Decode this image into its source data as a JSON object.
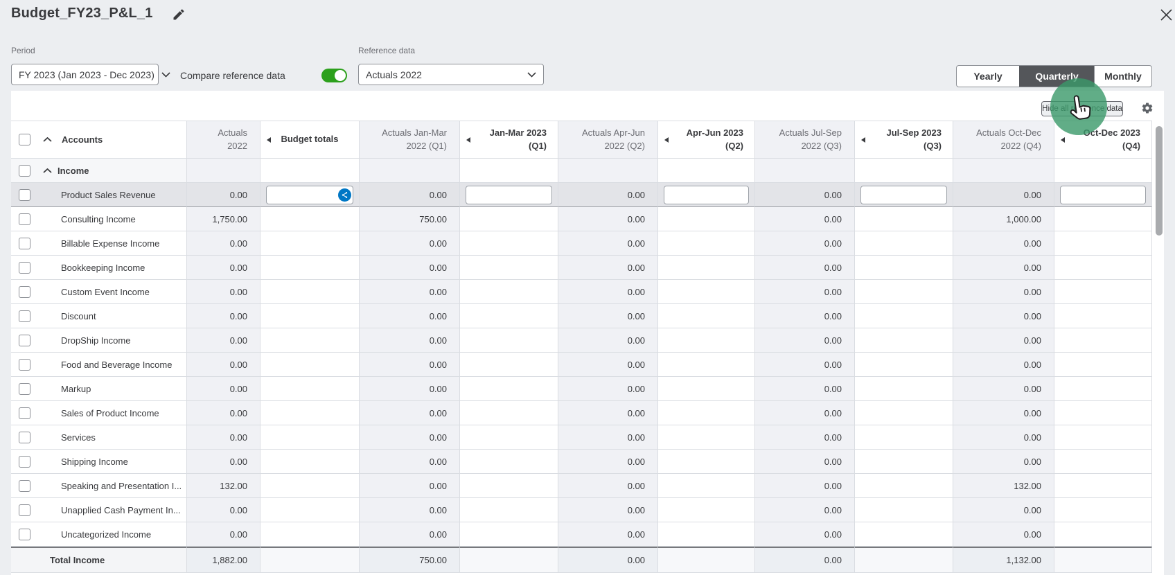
{
  "header": {
    "title": "Budget_FY23_P&L_1",
    "edit_icon": "pencil-edit",
    "close_icon": "close-x"
  },
  "controls": {
    "period": {
      "label": "Period",
      "value": "FY 2023 (Jan 2023 - Dec 2023)"
    },
    "compare_label": "Compare reference data",
    "compare_toggle_state": "on",
    "reference": {
      "label": "Reference data",
      "value": "Actuals 2022"
    },
    "view_tabs": [
      {
        "label": "Yearly",
        "selected": false
      },
      {
        "label": "Quarterly",
        "selected": true
      },
      {
        "label": "Monthly",
        "selected": false
      }
    ]
  },
  "toolbar": {
    "hide_reference_label": "Hide all reference data",
    "gear_icon": "settings-gear"
  },
  "table": {
    "columns": [
      {
        "id": "accounts",
        "kind": "accounts",
        "label": "Accounts"
      },
      {
        "id": "actuals_2022",
        "kind": "reference",
        "line1": "Actuals",
        "line2": "2022"
      },
      {
        "id": "budget_totals",
        "kind": "editable",
        "line1": "Budget totals",
        "line2": "",
        "center": true,
        "arrow": true
      },
      {
        "id": "actuals_q1",
        "kind": "reference",
        "line1": "Actuals Jan-Mar",
        "line2": "2022 (Q1)"
      },
      {
        "id": "q1",
        "kind": "editable",
        "line1": "Jan-Mar 2023",
        "line2": "(Q1)",
        "arrow": true
      },
      {
        "id": "actuals_q2",
        "kind": "reference",
        "line1": "Actuals Apr-Jun",
        "line2": "2022 (Q2)"
      },
      {
        "id": "q2",
        "kind": "editable",
        "line1": "Apr-Jun 2023",
        "line2": "(Q2)",
        "arrow": true
      },
      {
        "id": "actuals_q3",
        "kind": "reference",
        "line1": "Actuals Jul-Sep",
        "line2": "2022 (Q3)"
      },
      {
        "id": "q3",
        "kind": "editable",
        "line1": "Jul-Sep 2023",
        "line2": "(Q3)",
        "arrow": true
      },
      {
        "id": "actuals_q4",
        "kind": "reference",
        "line1": "Actuals Oct-Dec",
        "line2": "2022 (Q4)"
      },
      {
        "id": "q4",
        "kind": "editable",
        "line1": "Oct-Dec 2023",
        "line2": "(Q4)",
        "arrow": true
      }
    ],
    "rows": [
      {
        "type": "group",
        "name": "Income"
      },
      {
        "type": "account",
        "name": "Product Sales Revenue",
        "selected": true,
        "values": {
          "actuals_2022": "0.00",
          "actuals_q1": "0.00",
          "actuals_q2": "0.00",
          "actuals_q3": "0.00",
          "actuals_q4": "0.00"
        }
      },
      {
        "type": "account",
        "name": "Consulting Income",
        "values": {
          "actuals_2022": "1,750.00",
          "actuals_q1": "750.00",
          "actuals_q2": "0.00",
          "actuals_q3": "0.00",
          "actuals_q4": "1,000.00"
        }
      },
      {
        "type": "account",
        "name": "Billable Expense Income",
        "values": {
          "actuals_2022": "0.00",
          "actuals_q1": "0.00",
          "actuals_q2": "0.00",
          "actuals_q3": "0.00",
          "actuals_q4": "0.00"
        }
      },
      {
        "type": "account",
        "name": "Bookkeeping Income",
        "values": {
          "actuals_2022": "0.00",
          "actuals_q1": "0.00",
          "actuals_q2": "0.00",
          "actuals_q3": "0.00",
          "actuals_q4": "0.00"
        }
      },
      {
        "type": "account",
        "name": "Custom Event Income",
        "values": {
          "actuals_2022": "0.00",
          "actuals_q1": "0.00",
          "actuals_q2": "0.00",
          "actuals_q3": "0.00",
          "actuals_q4": "0.00"
        }
      },
      {
        "type": "account",
        "name": "Discount",
        "values": {
          "actuals_2022": "0.00",
          "actuals_q1": "0.00",
          "actuals_q2": "0.00",
          "actuals_q3": "0.00",
          "actuals_q4": "0.00"
        }
      },
      {
        "type": "account",
        "name": "DropShip Income",
        "values": {
          "actuals_2022": "0.00",
          "actuals_q1": "0.00",
          "actuals_q2": "0.00",
          "actuals_q3": "0.00",
          "actuals_q4": "0.00"
        }
      },
      {
        "type": "account",
        "name": "Food and Beverage Income",
        "values": {
          "actuals_2022": "0.00",
          "actuals_q1": "0.00",
          "actuals_q2": "0.00",
          "actuals_q3": "0.00",
          "actuals_q4": "0.00"
        }
      },
      {
        "type": "account",
        "name": "Markup",
        "values": {
          "actuals_2022": "0.00",
          "actuals_q1": "0.00",
          "actuals_q2": "0.00",
          "actuals_q3": "0.00",
          "actuals_q4": "0.00"
        }
      },
      {
        "type": "account",
        "name": "Sales of Product Income",
        "values": {
          "actuals_2022": "0.00",
          "actuals_q1": "0.00",
          "actuals_q2": "0.00",
          "actuals_q3": "0.00",
          "actuals_q4": "0.00"
        }
      },
      {
        "type": "account",
        "name": "Services",
        "values": {
          "actuals_2022": "0.00",
          "actuals_q1": "0.00",
          "actuals_q2": "0.00",
          "actuals_q3": "0.00",
          "actuals_q4": "0.00"
        }
      },
      {
        "type": "account",
        "name": "Shipping Income",
        "values": {
          "actuals_2022": "0.00",
          "actuals_q1": "0.00",
          "actuals_q2": "0.00",
          "actuals_q3": "0.00",
          "actuals_q4": "0.00"
        }
      },
      {
        "type": "account",
        "name": "Speaking and Presentation I...",
        "values": {
          "actuals_2022": "132.00",
          "actuals_q1": "0.00",
          "actuals_q2": "0.00",
          "actuals_q3": "0.00",
          "actuals_q4": "132.00"
        }
      },
      {
        "type": "account",
        "name": "Unapplied Cash Payment In...",
        "values": {
          "actuals_2022": "0.00",
          "actuals_q1": "0.00",
          "actuals_q2": "0.00",
          "actuals_q3": "0.00",
          "actuals_q4": "0.00"
        }
      },
      {
        "type": "account",
        "name": "Uncategorized Income",
        "values": {
          "actuals_2022": "0.00",
          "actuals_q1": "0.00",
          "actuals_q2": "0.00",
          "actuals_q3": "0.00",
          "actuals_q4": "0.00"
        }
      },
      {
        "type": "total",
        "name": "Total Income",
        "values": {
          "actuals_2022": "1,882.00",
          "actuals_q1": "750.00",
          "actuals_q2": "0.00",
          "actuals_q3": "0.00",
          "actuals_q4": "1,132.00"
        }
      }
    ]
  },
  "cursor_overlay": {
    "type": "click-indicator",
    "shape": "green-circle-with-hand-cursor"
  },
  "colors": {
    "toggle_green": "#2ca01c",
    "spread_icon_blue": "#0077c5",
    "selected_tab_bg": "#54565a",
    "click_overlay_green": "rgba(57,152,105,0.8)",
    "page_bg": "#eceef1",
    "reference_col_bg": "#f0f1f5",
    "selected_row_bg": "#e3e4e8"
  }
}
